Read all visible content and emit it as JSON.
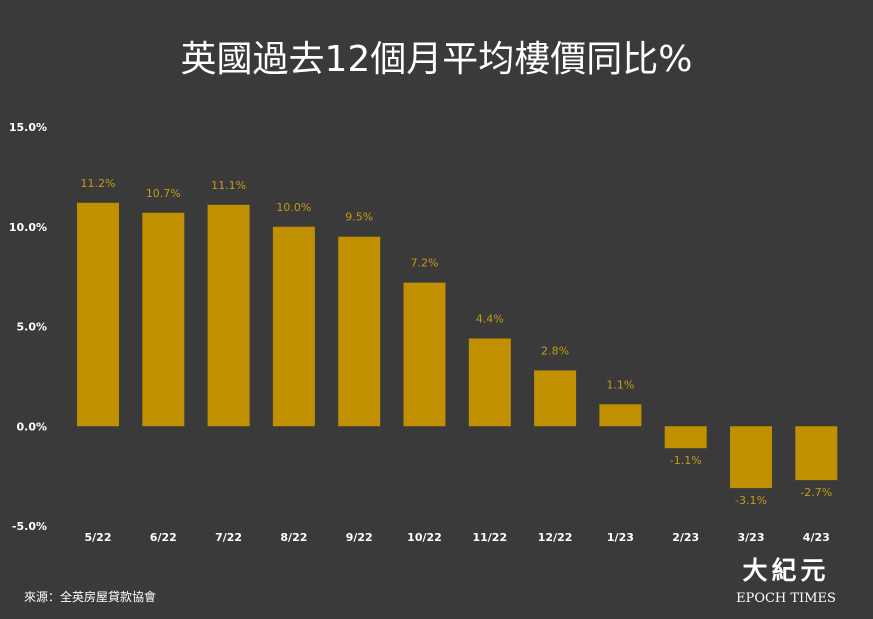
{
  "title": "英國過去12個月平均樓價同比%",
  "source": "來源：全英房屋貸款協會",
  "logo": {
    "chinese": "大紀元",
    "english": "EPOCH TIMES"
  },
  "colors": {
    "background": "#3a3a3a",
    "bar": "#c09000",
    "label": "#c49a1a",
    "text": "#ffffff"
  },
  "chart_data": {
    "type": "bar",
    "title": "英國過去12個月平均樓價同比%",
    "categories": [
      "5/22",
      "6/22",
      "7/22",
      "8/22",
      "9/22",
      "10/22",
      "11/22",
      "12/22",
      "1/23",
      "2/23",
      "3/23",
      "4/23"
    ],
    "values": [
      11.2,
      10.7,
      11.1,
      10.0,
      9.5,
      7.2,
      4.4,
      2.8,
      1.1,
      -1.1,
      -3.1,
      -2.7
    ],
    "value_labels": [
      "11.2%",
      "10.7%",
      "11.1%",
      "10.0%",
      "9.5%",
      "7.2%",
      "4.4%",
      "2.8%",
      "1.1%",
      "-1.1%",
      "-3.1%",
      "-2.7%"
    ],
    "yticks": [
      "15.0%",
      "10.0%",
      "5.0%",
      "0.0%",
      "-5.0%"
    ],
    "ytick_values": [
      15,
      10,
      5,
      0,
      -5
    ],
    "ylim": [
      -5,
      15
    ],
    "grid": false,
    "legend": "none"
  }
}
